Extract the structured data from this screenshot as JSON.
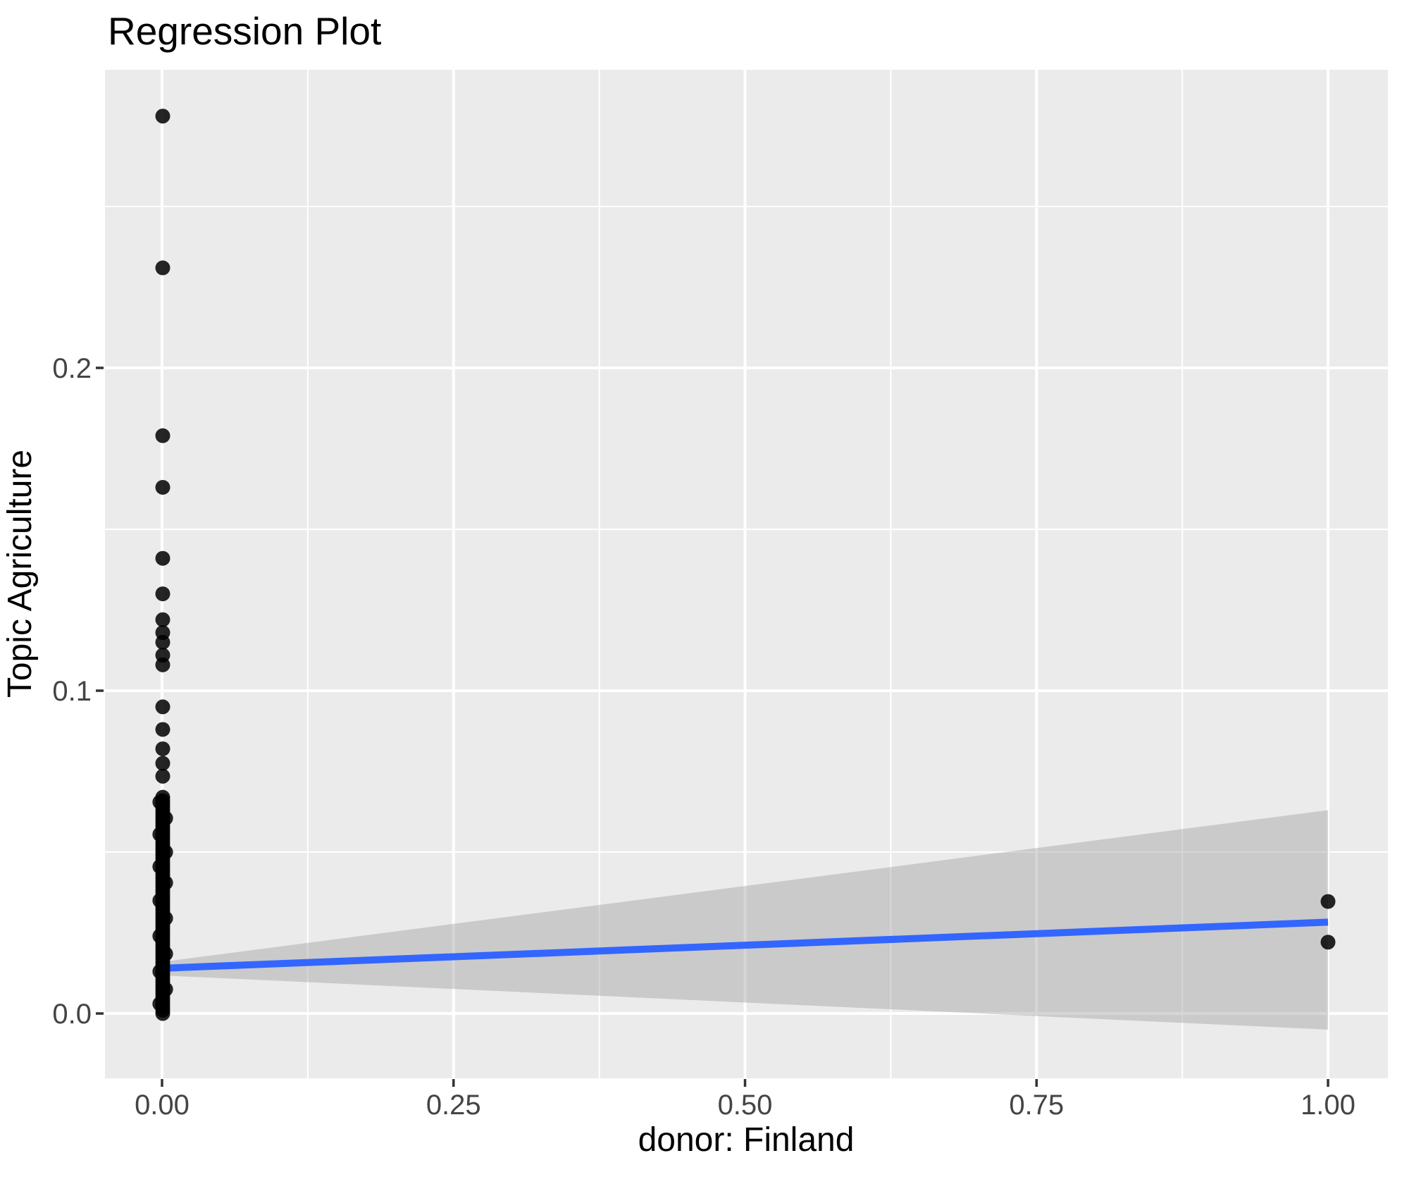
{
  "chart_data": {
    "type": "scatter",
    "title": "Regression Plot",
    "xlabel": "donor: Finland",
    "ylabel": "Topic Agriculture",
    "legend": false,
    "grid": true,
    "xlim": [
      -0.049,
      1.051
    ],
    "ylim": [
      -0.0201,
      0.2924
    ],
    "x_ticks": [
      {
        "label": "0.00",
        "value": 0
      },
      {
        "label": "0.25",
        "value": 0.25
      },
      {
        "label": "0.50",
        "value": 0.5
      },
      {
        "label": "0.75",
        "value": 0.75
      },
      {
        "label": "1.00",
        "value": 1
      }
    ],
    "y_ticks": [
      {
        "label": "0.0",
        "value": 0
      },
      {
        "label": "0.1",
        "value": 0.1
      },
      {
        "label": "0.2",
        "value": 0.2
      }
    ],
    "x_minor": [
      0.125,
      0.375,
      0.625,
      0.875
    ],
    "y_minor": [
      0.05,
      0.15,
      0.25
    ],
    "points": {
      "x0_upper": [
        0.278,
        0.231,
        0.179,
        0.163,
        0.141,
        0.13,
        0.122,
        0.118,
        0.115,
        0.111,
        0.108,
        0.095,
        0.088,
        0.082,
        0.0775,
        0.0735
      ],
      "x0_column": [
        0.067,
        0.066,
        0.065,
        0.064,
        0.063,
        0.062,
        0.061,
        0.06,
        0.059,
        0.058,
        0.057,
        0.056,
        0.055,
        0.054,
        0.053,
        0.052,
        0.051,
        0.05,
        0.049,
        0.048,
        0.047,
        0.046,
        0.045,
        0.044,
        0.043,
        0.042,
        0.041,
        0.04,
        0.039,
        0.038,
        0.037,
        0.036,
        0.035,
        0.034,
        0.033,
        0.032,
        0.031,
        0.03,
        0.029,
        0.028,
        0.027,
        0.026,
        0.025,
        0.024,
        0.023,
        0.022,
        0.021,
        0.02,
        0.019,
        0.018,
        0.017,
        0.016,
        0.015,
        0.014,
        0.013,
        0.012,
        0.011,
        0.01,
        0.009,
        0.008,
        0.007,
        0.006,
        0.005,
        0.004,
        0.003,
        0.002,
        0.001,
        0.0
      ],
      "x0_jitter": [
        {
          "x": -0.0025,
          "y": 0.0655
        },
        {
          "x": 0.0025,
          "y": 0.0605
        },
        {
          "x": -0.0025,
          "y": 0.0555
        },
        {
          "x": 0.0025,
          "y": 0.05
        },
        {
          "x": -0.0025,
          "y": 0.0455
        },
        {
          "x": 0.0025,
          "y": 0.0405
        },
        {
          "x": -0.0025,
          "y": 0.035
        },
        {
          "x": 0.0025,
          "y": 0.0295
        },
        {
          "x": -0.0025,
          "y": 0.024
        },
        {
          "x": 0.0025,
          "y": 0.0185
        },
        {
          "x": -0.0025,
          "y": 0.013
        },
        {
          "x": 0.0025,
          "y": 0.0075
        },
        {
          "x": -0.0025,
          "y": 0.003
        }
      ],
      "x1": [
        0.0347,
        0.0221
      ]
    },
    "regression_line": {
      "x1": 0,
      "y1": 0.014,
      "x2": 1,
      "y2": 0.0283
    },
    "ci_band": [
      [
        0,
        0.016
      ],
      [
        1,
        0.063
      ],
      [
        1,
        -0.005
      ],
      [
        0,
        0.0118
      ]
    ],
    "colors": {
      "panel_bg": "#EBEBEB",
      "grid": "#FFFFFF",
      "line": "#3366FF",
      "band": "#999999",
      "band_alpha": 0.4,
      "point": "#000000",
      "point_alpha": 0.85,
      "axis_text": "#444444",
      "tick_mark": "#333333",
      "title_text": "#000000"
    }
  }
}
